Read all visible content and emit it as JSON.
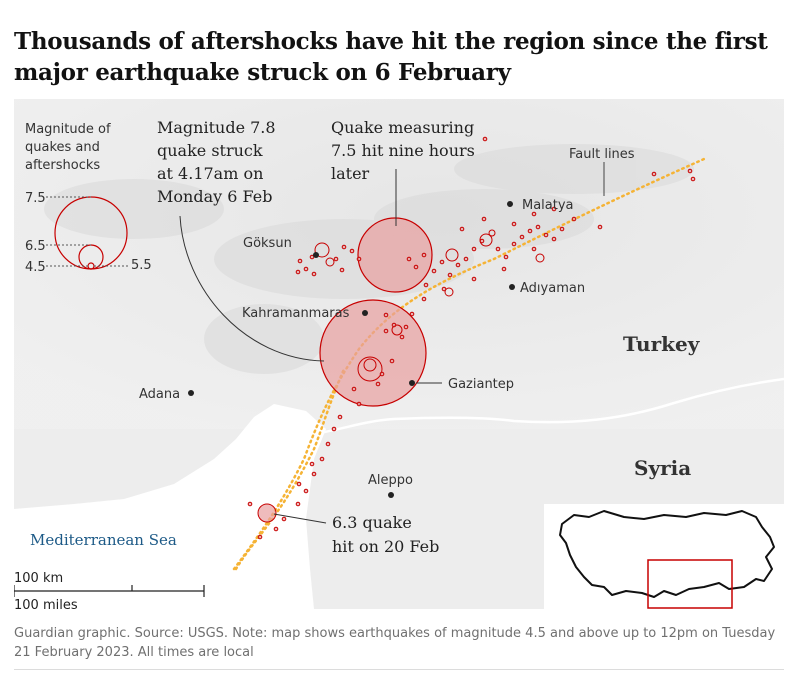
{
  "headline": "Thousands of aftershocks have hit the region since the first major earthquake struck on 6 February",
  "legend": {
    "title_lines": [
      "Magnitude of",
      "quakes and",
      "aftershocks"
    ],
    "labels": [
      "7.5",
      "6.5",
      "4.5",
      "5.5"
    ]
  },
  "annotations": {
    "main_quake": [
      "Magnitude 7.8",
      "quake struck",
      "at 4.17am on",
      "Monday 6 Feb"
    ],
    "second_quake": [
      "Quake measuring",
      "7.5 hit nine hours",
      "later"
    ],
    "feb20_quake": [
      "6.3 quake",
      "hit on 20 Feb"
    ],
    "fault_lines": "Fault lines"
  },
  "places": {
    "goksun": "Göksun",
    "malatya": "Malatya",
    "adiyaman": "Adıyaman",
    "kahramanmaras": "Kahramanmaras",
    "gaziantep": "Gaziantep",
    "adana": "Adana",
    "aleppo": "Aleppo"
  },
  "countries": {
    "turkey": "Turkey",
    "syria": "Syria"
  },
  "sea": "Mediterranean Sea",
  "scale": {
    "km": "100 km",
    "miles": "100 miles"
  },
  "footer": "Guardian graphic. Source: USGS. Note: map shows earthquakes of magnitude 4.5 and above up to 12pm on Tuesday 21 February 2023. All times are local",
  "colors": {
    "quake_fill": "#e8a0a0",
    "quake_stroke": "#c70000",
    "fault": "#f5b335",
    "land": "#f2f2f2",
    "sea": "#ffffff",
    "sea_label": "#1d5a87"
  }
}
